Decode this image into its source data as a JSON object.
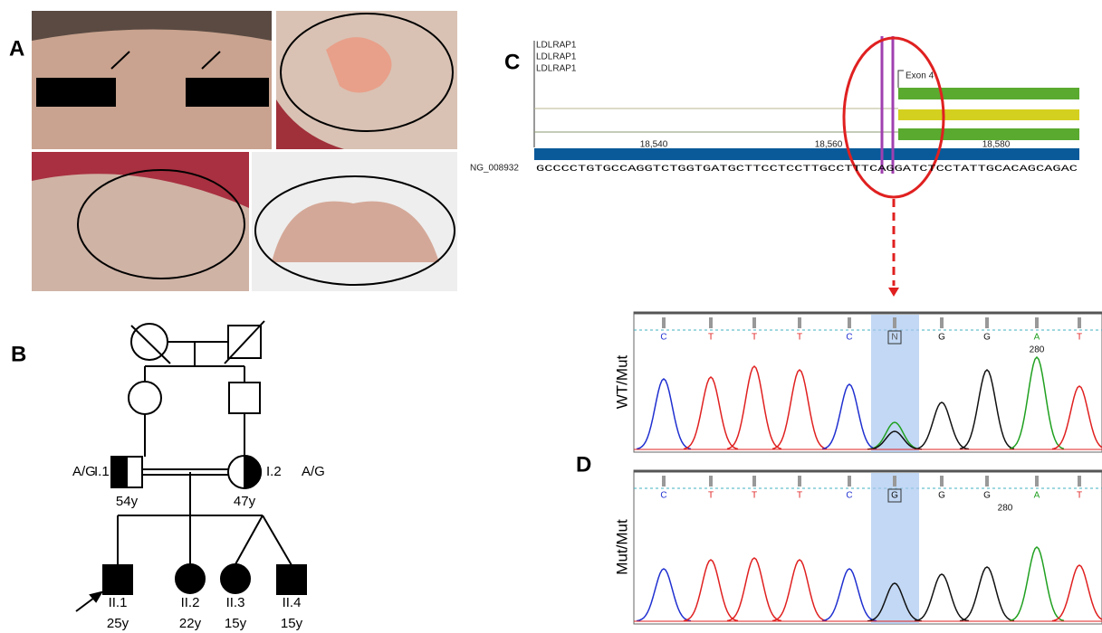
{
  "panel_a": {
    "label": "A"
  },
  "panel_b": {
    "label": "B",
    "parents": [
      {
        "id": "I.1",
        "genotype": "A/G",
        "age": "54y"
      },
      {
        "id": "I.2",
        "genotype": "A/G",
        "age": "47y"
      }
    ],
    "children": [
      {
        "id": "II.1",
        "age": "25y"
      },
      {
        "id": "II.2",
        "age": "22y"
      },
      {
        "id": "II.3",
        "age": "15y"
      },
      {
        "id": "II.4",
        "age": "15y"
      }
    ]
  },
  "panel_c": {
    "label": "C",
    "tracks": [
      "LDLRAP1",
      "LDLRAP1",
      "LDLRAP1"
    ],
    "exon": "Exon 4",
    "positions": [
      "18,540",
      "18,560",
      "18,580"
    ],
    "reference": "NG_008932",
    "sequence": "GCCCCTGTGCCAGGTCTGGTGATGCTTCCTCCTTGCCTTTCAGGATCTCCTATTGCACAGCAGAC"
  },
  "panel_d": {
    "label": "D",
    "traces": [
      {
        "label": "WT/Mut",
        "bases": [
          "C",
          "T",
          "T",
          "T",
          "C",
          "N",
          "G",
          "G",
          "A",
          "T"
        ],
        "position": "280"
      },
      {
        "label": "Mut/Mut",
        "bases": [
          "C",
          "T",
          "T",
          "T",
          "C",
          "G",
          "G",
          "G",
          "A",
          "T"
        ],
        "position": "280"
      }
    ]
  }
}
